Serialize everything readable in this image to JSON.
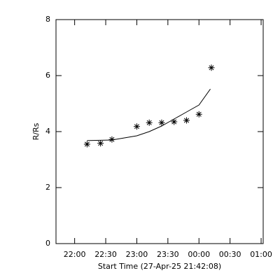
{
  "chart_data": {
    "type": "scatter",
    "xlabel": "Start Time (27-Apr-25 21:42:08)",
    "ylabel": "R/Rs",
    "xlim": [
      1302,
      1502
    ],
    "xticks": [
      {
        "value": 1320,
        "label": "22:00"
      },
      {
        "value": 1350,
        "label": "22:30"
      },
      {
        "value": 1380,
        "label": "23:00"
      },
      {
        "value": 1410,
        "label": "23:30"
      },
      {
        "value": 1440,
        "label": "00:00"
      },
      {
        "value": 1470,
        "label": "00:30"
      },
      {
        "value": 1500,
        "label": "01:00"
      }
    ],
    "ylim": [
      0,
      8
    ],
    "yticks": [
      0,
      2,
      4,
      6,
      8
    ],
    "color": "#000000",
    "points": {
      "x": [
        1332,
        1345,
        1356,
        1380,
        1392,
        1404,
        1416,
        1428,
        1440,
        1452
      ],
      "values": [
        3.55,
        3.58,
        3.72,
        4.18,
        4.32,
        4.32,
        4.35,
        4.4,
        4.62,
        6.28
      ]
    },
    "fit": {
      "x": [
        1332,
        1345,
        1356,
        1380,
        1392,
        1404,
        1416,
        1428,
        1440,
        1451
      ],
      "values": [
        3.68,
        3.69,
        3.7,
        3.85,
        4.0,
        4.2,
        4.45,
        4.7,
        4.95,
        5.52
      ]
    }
  }
}
